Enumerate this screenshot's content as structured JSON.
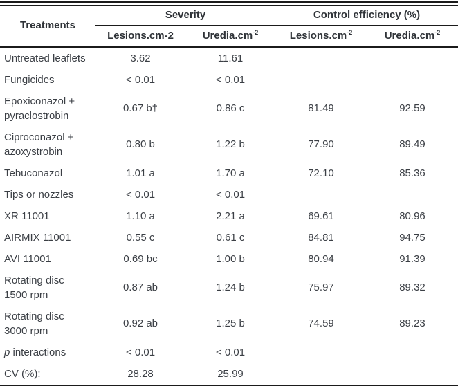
{
  "table": {
    "header": {
      "treatments": "Treatments",
      "severity": "Severity",
      "control_efficiency": "Control efficiency (%)",
      "sub": [
        {
          "base": "Lesions.cm-2",
          "sup": ""
        },
        {
          "base": "Uredia.cm",
          "sup": "-2"
        },
        {
          "base": "Lesions.cm",
          "sup": "-2"
        },
        {
          "base": "Uredia.cm",
          "sup": "-2"
        }
      ]
    },
    "rows": [
      {
        "name": "Untreated leaflets",
        "c1": "3.62",
        "c2": "11.61",
        "c3": "",
        "c4": ""
      },
      {
        "name": "Fungicides",
        "c1": "< 0.01",
        "c2": "< 0.01",
        "c3": "",
        "c4": ""
      },
      {
        "name": "Epoxiconazol + pyraclostrobin",
        "c1": "0.67 b†",
        "c2": "0.86 c",
        "c3": "81.49",
        "c4": "92.59"
      },
      {
        "name": "Ciproconazol + azoxystrobin",
        "c1": "0.80 b",
        "c2": "1.22 b",
        "c3": "77.90",
        "c4": "89.49"
      },
      {
        "name": "Tebuconazol",
        "c1": "1.01 a",
        "c2": "1.70 a",
        "c3": "72.10",
        "c4": "85.36"
      },
      {
        "name": "Tips or nozzles",
        "c1": "< 0.01",
        "c2": "< 0.01",
        "c3": "",
        "c4": ""
      },
      {
        "name": "XR 11001",
        "c1": "1.10 a",
        "c2": "2.21 a",
        "c3": "69.61",
        "c4": "80.96"
      },
      {
        "name": "AIRMIX 11001",
        "c1": "0.55 c",
        "c2": "0.61 c",
        "c3": "84.81",
        "c4": "94.75"
      },
      {
        "name": "AVI 11001",
        "c1": "0.69 bc",
        "c2": "1.00 b",
        "c3": "80.94",
        "c4": "91.39"
      },
      {
        "name": "Rotating disc 1500 rpm",
        "c1": "0.87 ab",
        "c2": "1.24 b",
        "c3": "75.97",
        "c4": "89.32"
      },
      {
        "name": "Rotating disc 3000 rpm",
        "c1": "0.92 ab",
        "c2": "1.25 b",
        "c3": "74.59",
        "c4": "89.23"
      },
      {
        "italic": "p",
        "rest": " interactions",
        "c1": "< 0.01",
        "c2": "< 0.01",
        "c3": "",
        "c4": ""
      },
      {
        "name": "CV (%):",
        "c1": "28.28",
        "c2": "25.99",
        "c3": "",
        "c4": ""
      }
    ],
    "colors": {
      "text": "#3b3f45",
      "header_text": "#2f3338",
      "rule": "#1b1b1b",
      "background": "#ffffff"
    }
  }
}
